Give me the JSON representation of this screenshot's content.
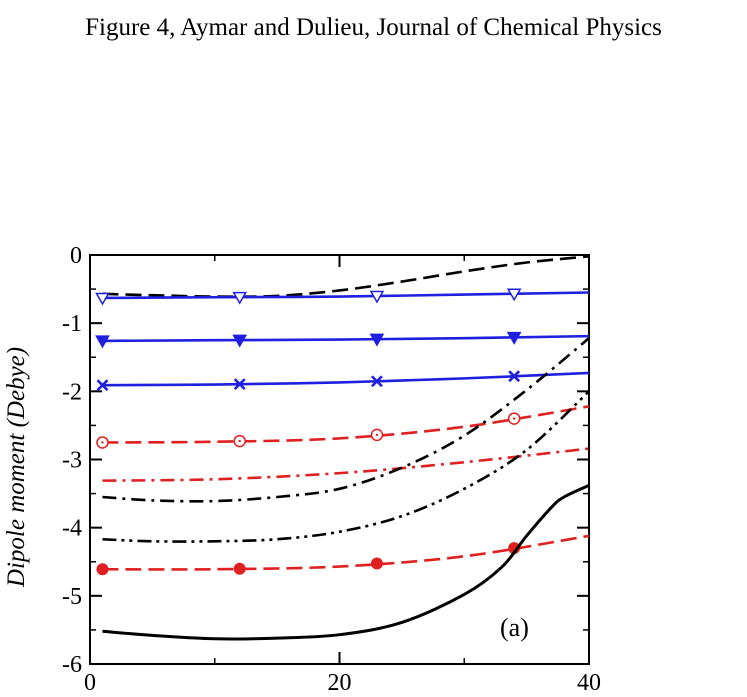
{
  "page": {
    "caption": "Figure 4, Aymar and Dulieu, Journal of Chemical Physics"
  },
  "chart_data": {
    "type": "line",
    "title": "",
    "xlabel": "",
    "ylabel": "Dipole moment (Debye)",
    "xlim": [
      0,
      40
    ],
    "ylim": [
      -6,
      0
    ],
    "x_ticks": [
      0,
      20,
      40
    ],
    "y_ticks": [
      0,
      -1,
      -2,
      -3,
      -4,
      -5,
      -6
    ],
    "x_tick_labels": [
      "0",
      "20",
      "40"
    ],
    "y_tick_labels": [
      "0",
      "-1",
      "-2",
      "-3",
      "-4",
      "-5",
      "-6"
    ],
    "grid": false,
    "legend": "none",
    "annotation": "(a)",
    "series": [
      {
        "color": "#000000",
        "dash": "long-dash",
        "marker": "none",
        "x": [
          1,
          5,
          10,
          15,
          20,
          25,
          30,
          35,
          40
        ],
        "y": [
          -0.57,
          -0.59,
          -0.61,
          -0.6,
          -0.52,
          -0.39,
          -0.24,
          -0.11,
          -0.02
        ]
      },
      {
        "color": "#1f1fe0",
        "dash": "solid",
        "marker": "triangle-down-open",
        "x": [
          1,
          10,
          20,
          30,
          40
        ],
        "y": [
          -0.63,
          -0.62,
          -0.61,
          -0.58,
          -0.55
        ],
        "marker_x": [
          1,
          12,
          23,
          34
        ]
      },
      {
        "color": "#1f1fe0",
        "dash": "solid",
        "marker": "triangle-down-filled",
        "x": [
          1,
          10,
          20,
          30,
          40
        ],
        "y": [
          -1.26,
          -1.25,
          -1.24,
          -1.22,
          -1.19
        ],
        "marker_x": [
          1,
          12,
          23,
          34
        ]
      },
      {
        "color": "#1f1fe0",
        "dash": "solid",
        "marker": "x",
        "x": [
          1,
          10,
          20,
          30,
          40
        ],
        "y": [
          -1.91,
          -1.9,
          -1.87,
          -1.81,
          -1.73
        ],
        "marker_x": [
          1,
          12,
          23,
          34
        ]
      },
      {
        "color": "#e02020",
        "dash": "long-dash",
        "marker": "circle-open",
        "x": [
          1,
          10,
          20,
          30,
          40
        ],
        "y": [
          -2.75,
          -2.74,
          -2.69,
          -2.52,
          -2.22
        ],
        "marker_x": [
          1,
          12,
          23,
          34
        ]
      },
      {
        "color": "#e02020",
        "dash": "dash-dot",
        "marker": "none",
        "x": [
          1,
          10,
          20,
          30,
          40
        ],
        "y": [
          -3.31,
          -3.29,
          -3.2,
          -3.04,
          -2.84
        ]
      },
      {
        "color": "#000000",
        "dash": "dash-dot",
        "marker": "none",
        "x": [
          1,
          5,
          10,
          15,
          20,
          25,
          30,
          35,
          40
        ],
        "y": [
          -3.55,
          -3.6,
          -3.61,
          -3.55,
          -3.43,
          -3.12,
          -2.65,
          -1.98,
          -1.22
        ]
      },
      {
        "color": "#000000",
        "dash": "dash-dot-dot",
        "marker": "none",
        "x": [
          1,
          5,
          10,
          15,
          20,
          25,
          30,
          35,
          40
        ],
        "y": [
          -4.17,
          -4.2,
          -4.2,
          -4.17,
          -4.06,
          -3.83,
          -3.43,
          -2.86,
          -2.0
        ]
      },
      {
        "color": "#e02020",
        "dash": "long-dash",
        "marker": "circle-filled",
        "x": [
          1,
          10,
          20,
          30,
          40
        ],
        "y": [
          -4.61,
          -4.61,
          -4.57,
          -4.42,
          -4.12
        ],
        "marker_x": [
          1,
          12,
          23,
          34
        ]
      },
      {
        "color": "#000000",
        "dash": "solid",
        "marker": "none",
        "x": [
          1,
          5,
          10,
          15,
          20,
          25,
          30,
          33,
          35,
          37,
          38,
          40
        ],
        "y": [
          -5.52,
          -5.58,
          -5.63,
          -5.62,
          -5.57,
          -5.39,
          -4.98,
          -4.58,
          -4.12,
          -3.7,
          -3.55,
          -3.38
        ]
      }
    ]
  }
}
